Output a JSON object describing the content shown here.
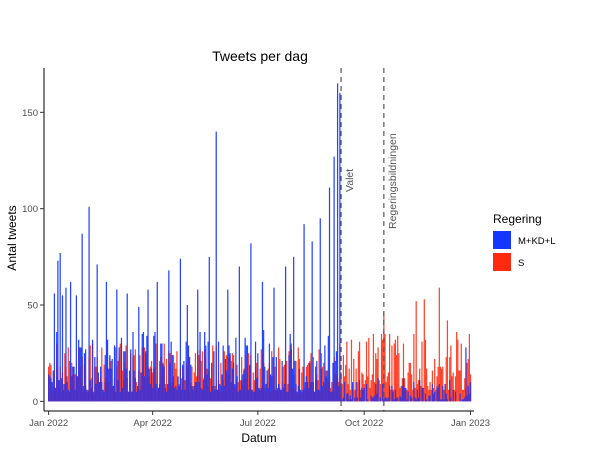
{
  "chart_data": {
    "type": "bar",
    "title": "Tweets per dag",
    "xlabel": "Datum",
    "ylabel": "Antal tweets",
    "xlim": [
      "2021-12-28",
      "2023-01-04"
    ],
    "ylim": [
      -5,
      173
    ],
    "x_ticks": [
      {
        "date": "2022-01-01",
        "label": "Jan 2022"
      },
      {
        "date": "2022-04-01",
        "label": "Apr 2022"
      },
      {
        "date": "2022-07-01",
        "label": "Jul 2022"
      },
      {
        "date": "2022-10-01",
        "label": "Oct 2022"
      },
      {
        "date": "2023-01-01",
        "label": "Jan 2023"
      }
    ],
    "y_ticks": [
      0,
      50,
      100,
      150
    ],
    "grid": false,
    "legend": {
      "title": "Regering",
      "position": "right",
      "entries": [
        {
          "label": "M+KD+L",
          "color": "#1436FF"
        },
        {
          "label": "S",
          "color": "#FF2A10"
        }
      ]
    },
    "vlines": [
      {
        "date": "2022-09-11",
        "label": "Valet"
      },
      {
        "date": "2022-10-18",
        "label": "Regeringsbildningen"
      }
    ],
    "series": [
      {
        "name": "M+KD+L",
        "color": "#1436FF",
        "start_date": "2022-01-01",
        "end_date": "2023-01-01",
        "peaks": [
          {
            "date": "2022-01-01",
            "value": 14
          },
          {
            "date": "2022-01-03",
            "value": 12
          },
          {
            "date": "2022-01-06",
            "value": 56
          },
          {
            "date": "2022-01-09",
            "value": 73
          },
          {
            "date": "2022-01-11",
            "value": 77
          },
          {
            "date": "2022-01-13",
            "value": 55
          },
          {
            "date": "2022-01-16",
            "value": 59
          },
          {
            "date": "2022-01-20",
            "value": 62
          },
          {
            "date": "2022-01-25",
            "value": 55
          },
          {
            "date": "2022-01-30",
            "value": 87
          },
          {
            "date": "2022-02-05",
            "value": 101
          },
          {
            "date": "2022-02-12",
            "value": 71
          },
          {
            "date": "2022-02-20",
            "value": 62
          },
          {
            "date": "2022-03-01",
            "value": 58
          },
          {
            "date": "2022-03-10",
            "value": 56
          },
          {
            "date": "2022-03-20",
            "value": 49
          },
          {
            "date": "2022-03-28",
            "value": 58
          },
          {
            "date": "2022-04-05",
            "value": 62
          },
          {
            "date": "2022-04-15",
            "value": 68
          },
          {
            "date": "2022-04-25",
            "value": 74
          },
          {
            "date": "2022-05-01",
            "value": 50
          },
          {
            "date": "2022-05-10",
            "value": 58
          },
          {
            "date": "2022-05-20",
            "value": 75
          },
          {
            "date": "2022-05-26",
            "value": 140
          },
          {
            "date": "2022-06-05",
            "value": 58
          },
          {
            "date": "2022-06-15",
            "value": 70
          },
          {
            "date": "2022-06-25",
            "value": 82
          },
          {
            "date": "2022-07-05",
            "value": 62
          },
          {
            "date": "2022-07-15",
            "value": 59
          },
          {
            "date": "2022-07-25",
            "value": 70
          },
          {
            "date": "2022-08-01",
            "value": 75
          },
          {
            "date": "2022-08-10",
            "value": 92
          },
          {
            "date": "2022-08-17",
            "value": 83
          },
          {
            "date": "2022-08-24",
            "value": 95
          },
          {
            "date": "2022-09-01",
            "value": 111
          },
          {
            "date": "2022-09-05",
            "value": 127
          },
          {
            "date": "2022-09-08",
            "value": 165
          },
          {
            "date": "2022-09-10",
            "value": 160
          },
          {
            "date": "2022-12-28",
            "value": 28
          }
        ]
      },
      {
        "name": "S",
        "color": "#FF2A10",
        "start_date": "2022-01-01",
        "end_date": "2023-01-01",
        "peaks": [
          {
            "date": "2022-09-20",
            "value": 32
          },
          {
            "date": "2022-10-05",
            "value": 33
          },
          {
            "date": "2022-10-18",
            "value": 46
          },
          {
            "date": "2022-11-04",
            "value": 30
          },
          {
            "date": "2022-11-15",
            "value": 52
          },
          {
            "date": "2022-11-22",
            "value": 53
          },
          {
            "date": "2022-12-05",
            "value": 59
          },
          {
            "date": "2022-12-12",
            "value": 42
          },
          {
            "date": "2022-12-20",
            "value": 36
          }
        ]
      }
    ]
  }
}
